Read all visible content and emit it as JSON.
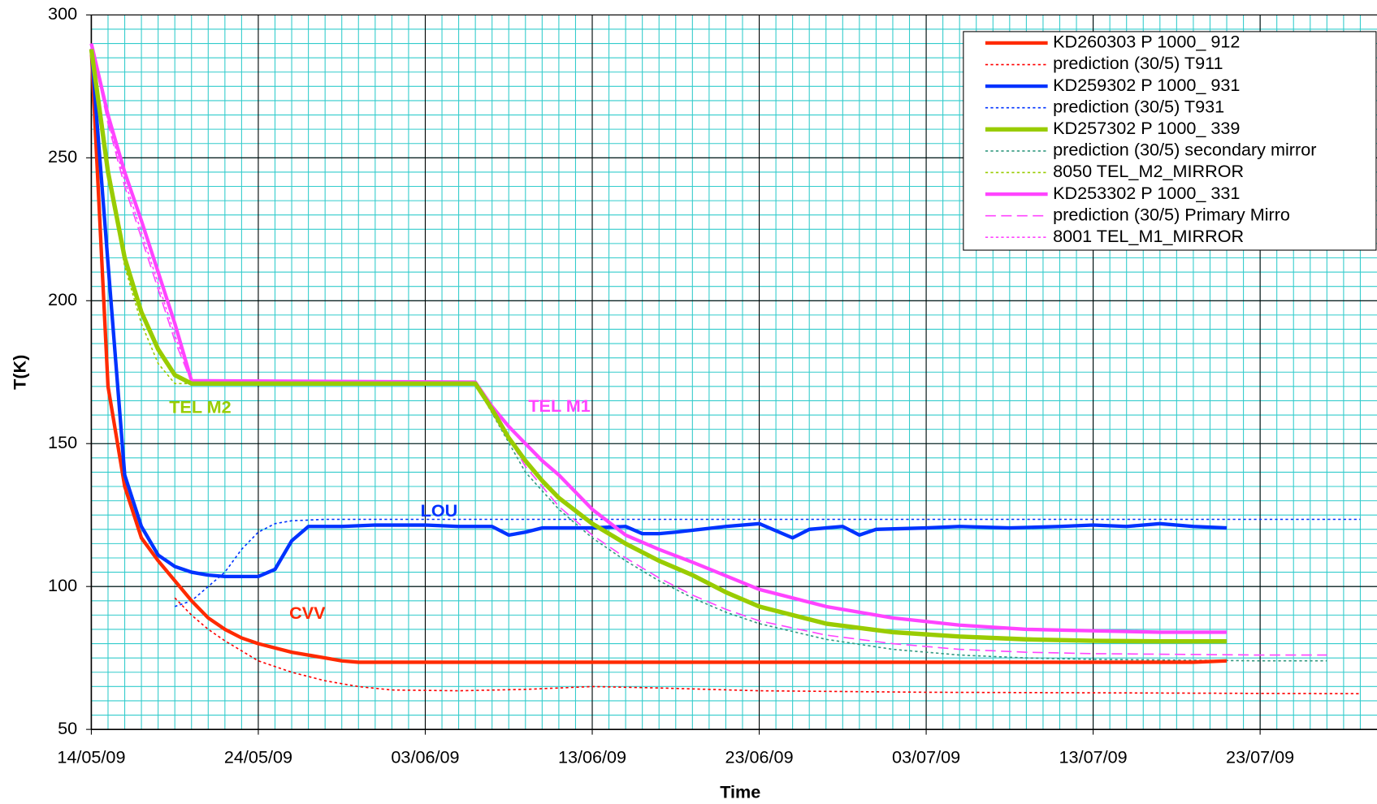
{
  "chart_data": {
    "type": "line",
    "xlabel": "Time",
    "ylabel": "T(K)",
    "xlim": [
      "2009-05-14",
      "2009-07-30"
    ],
    "ylim": [
      50,
      300
    ],
    "yticks": [
      50,
      100,
      150,
      200,
      250,
      300
    ],
    "xticks": [
      {
        "value": "2009-05-14",
        "label": "14/05/09"
      },
      {
        "value": "2009-05-24",
        "label": "24/05/09"
      },
      {
        "value": "2009-06-03",
        "label": "03/06/09"
      },
      {
        "value": "2009-06-13",
        "label": "13/06/09"
      },
      {
        "value": "2009-06-23",
        "label": "23/06/09"
      },
      {
        "value": "2009-07-03",
        "label": "03/07/09"
      },
      {
        "value": "2009-07-13",
        "label": "13/07/09"
      },
      {
        "value": "2009-07-23",
        "label": "23/07/09"
      }
    ],
    "grid": true,
    "minor_grid_step_y": 5,
    "minor_grid_step_x_days": 1,
    "legend": "top-right",
    "annotations": [
      {
        "text": "TEL M2",
        "color": "#99cc00"
      },
      {
        "text": "TEL M1",
        "color": "#ff44ff"
      },
      {
        "text": "LOU",
        "color": "#0033ff"
      },
      {
        "text": "CVV",
        "color": "#ff2a00"
      }
    ],
    "series": [
      {
        "name": "KD260303 P 1000_ 912",
        "color": "#ff2a00",
        "dash": "solid",
        "width": 4,
        "x": [
          "2009-05-14",
          "2009-05-15",
          "2009-05-16",
          "2009-05-17",
          "2009-05-18",
          "2009-05-19",
          "2009-05-20",
          "2009-05-21",
          "2009-05-22",
          "2009-05-23",
          "2009-05-24",
          "2009-05-26",
          "2009-05-28",
          "2009-05-29",
          "2009-05-30",
          "2009-06-03",
          "2009-06-13",
          "2009-06-23",
          "2009-07-03",
          "2009-07-13",
          "2009-07-19",
          "2009-07-21"
        ],
        "values": [
          288,
          170,
          135,
          117,
          109,
          102,
          95,
          89,
          85,
          82,
          80,
          77,
          75,
          74,
          73.5,
          73.5,
          73.5,
          73.5,
          73.5,
          73.5,
          73.5,
          74
        ]
      },
      {
        "name": "prediction (30/5) T911",
        "color": "#ff0000",
        "dash": "dotted",
        "width": 1.5,
        "x": [
          "2009-05-19",
          "2009-05-20",
          "2009-05-21",
          "2009-05-22",
          "2009-05-24",
          "2009-05-26",
          "2009-05-28",
          "2009-05-30",
          "2009-06-01",
          "2009-06-05",
          "2009-06-09",
          "2009-06-13",
          "2009-06-17",
          "2009-06-23",
          "2009-07-03",
          "2009-07-13",
          "2009-07-23",
          "2009-07-29"
        ],
        "values": [
          96,
          90,
          85,
          81,
          74,
          70,
          67,
          65,
          63.8,
          63.5,
          64,
          65,
          64.5,
          63.5,
          63,
          62.8,
          62.6,
          62.5
        ]
      },
      {
        "name": "KD259302 P 1000_ 931",
        "color": "#0033ff",
        "dash": "solid",
        "width": 4,
        "x": [
          "2009-05-14",
          "2009-05-15",
          "2009-05-16",
          "2009-05-17",
          "2009-05-18",
          "2009-05-19",
          "2009-05-20",
          "2009-05-21",
          "2009-05-22",
          "2009-05-24",
          "2009-05-25",
          "2009-05-26",
          "2009-05-27",
          "2009-05-29",
          "2009-05-31",
          "2009-06-03",
          "2009-06-05",
          "2009-06-07",
          "2009-06-08",
          "2009-06-09",
          "2009-06-10",
          "2009-06-13",
          "2009-06-15",
          "2009-06-16",
          "2009-06-17",
          "2009-06-18",
          "2009-06-21",
          "2009-06-23",
          "2009-06-25",
          "2009-06-26",
          "2009-06-28",
          "2009-06-29",
          "2009-06-30",
          "2009-07-03",
          "2009-07-05",
          "2009-07-08",
          "2009-07-11",
          "2009-07-13",
          "2009-07-15",
          "2009-07-17",
          "2009-07-19",
          "2009-07-21"
        ],
        "values": [
          288,
          213,
          139,
          121,
          111,
          107,
          105,
          104,
          103.5,
          103.5,
          106,
          116,
          121,
          121,
          121.5,
          121.5,
          121,
          121,
          118,
          119,
          120.5,
          120.5,
          121,
          118.5,
          118.5,
          119,
          121,
          122,
          117,
          120,
          121,
          118,
          120,
          120.5,
          121,
          120.5,
          121,
          121.5,
          121,
          122,
          121,
          120.5
        ]
      },
      {
        "name": "prediction (30/5) T931",
        "color": "#0033ff",
        "dash": "dotted",
        "width": 1.5,
        "x": [
          "2009-05-19",
          "2009-05-20",
          "2009-05-21",
          "2009-05-22",
          "2009-05-23",
          "2009-05-24",
          "2009-05-25",
          "2009-05-26",
          "2009-05-28",
          "2009-07-29"
        ],
        "values": [
          93,
          95,
          100,
          105,
          113,
          119,
          122,
          123,
          123.5,
          123.5
        ]
      },
      {
        "name": "KD257302 P 1000_ 339",
        "color": "#99cc00",
        "dash": "solid",
        "width": 5,
        "x": [
          "2009-05-14",
          "2009-05-15",
          "2009-05-16",
          "2009-05-17",
          "2009-05-18",
          "2009-05-19",
          "2009-05-20",
          "2009-06-06",
          "2009-06-07",
          "2009-06-08",
          "2009-06-09",
          "2009-06-10",
          "2009-06-11",
          "2009-06-13",
          "2009-06-15",
          "2009-06-17",
          "2009-06-19",
          "2009-06-21",
          "2009-06-23",
          "2009-06-27",
          "2009-07-01",
          "2009-07-05",
          "2009-07-09",
          "2009-07-13",
          "2009-07-17",
          "2009-07-21"
        ],
        "values": [
          288,
          245,
          215,
          196,
          183,
          174,
          171,
          171,
          162,
          152,
          144,
          137,
          131,
          122,
          115,
          109,
          104,
          98,
          93,
          87,
          84,
          82.5,
          81.5,
          81,
          80.8,
          80.8
        ]
      },
      {
        "name": "prediction (30/5) secondary mirror",
        "color": "#339980",
        "dash": "dotted",
        "width": 1.5,
        "x": [
          "2009-06-06",
          "2009-06-09",
          "2009-06-11",
          "2009-06-13",
          "2009-06-15",
          "2009-06-17",
          "2009-06-19",
          "2009-06-21",
          "2009-06-23",
          "2009-06-27",
          "2009-07-01",
          "2009-07-05",
          "2009-07-09",
          "2009-07-13",
          "2009-07-23",
          "2009-07-27"
        ],
        "values": [
          171,
          140,
          127,
          117,
          109,
          102,
          96,
          91,
          87,
          81.5,
          78,
          76,
          75,
          74.5,
          74,
          74
        ]
      },
      {
        "name": "8050 TEL_M2_MIRROR",
        "color": "#99cc00",
        "dash": "dotted",
        "width": 1.5,
        "x": [
          "2009-05-14",
          "2009-05-15",
          "2009-05-16",
          "2009-05-17",
          "2009-05-18",
          "2009-05-19",
          "2009-05-20",
          "2009-06-06"
        ],
        "values": [
          288,
          245,
          212,
          192,
          178,
          171,
          171,
          171
        ]
      },
      {
        "name": "KD253302 P 1000_ 331",
        "color": "#ff44ff",
        "dash": "solid",
        "width": 4,
        "x": [
          "2009-05-14",
          "2009-05-15",
          "2009-05-16",
          "2009-05-17",
          "2009-05-18",
          "2009-05-19",
          "2009-05-20",
          "2009-06-06",
          "2009-06-07",
          "2009-06-08",
          "2009-06-09",
          "2009-06-10",
          "2009-06-11",
          "2009-06-13",
          "2009-06-15",
          "2009-06-17",
          "2009-06-19",
          "2009-06-23",
          "2009-06-27",
          "2009-07-01",
          "2009-07-05",
          "2009-07-09",
          "2009-07-13",
          "2009-07-17",
          "2009-07-21"
        ],
        "values": [
          290,
          265,
          245,
          228,
          210,
          192,
          172,
          171.5,
          163,
          156,
          150,
          144,
          139,
          127,
          118,
          113,
          108.5,
          99,
          93,
          89,
          86.5,
          85,
          84.5,
          84,
          84
        ]
      },
      {
        "name": "prediction (30/5) Primary Mirro",
        "color": "#ff44ff",
        "dash": "dashed",
        "width": 1.5,
        "x": [
          "2009-05-14",
          "2009-05-15",
          "2009-05-16",
          "2009-05-17",
          "2009-05-18",
          "2009-05-19",
          "2009-05-20",
          "2009-06-06",
          "2009-06-09",
          "2009-06-11",
          "2009-06-13",
          "2009-06-15",
          "2009-06-17",
          "2009-06-19",
          "2009-06-21",
          "2009-06-23",
          "2009-06-27",
          "2009-07-01",
          "2009-07-05",
          "2009-07-09",
          "2009-07-13",
          "2009-07-23",
          "2009-07-27"
        ],
        "values": [
          290,
          262,
          240,
          222,
          204,
          186,
          171.5,
          171.5,
          142,
          128,
          118,
          110,
          103,
          97,
          92,
          88,
          83,
          80,
          78,
          77,
          76.5,
          76,
          76
        ]
      },
      {
        "name": "8001 TEL_M1_MIRROR",
        "color": "#ff44ff",
        "dash": "dotted",
        "width": 1.5,
        "x": [
          "2009-05-14",
          "2009-05-15",
          "2009-05-16",
          "2009-05-17",
          "2009-05-18",
          "2009-05-19",
          "2009-05-20",
          "2009-06-06"
        ],
        "values": [
          290,
          263,
          242,
          224,
          206,
          188,
          172,
          171
        ]
      }
    ]
  }
}
